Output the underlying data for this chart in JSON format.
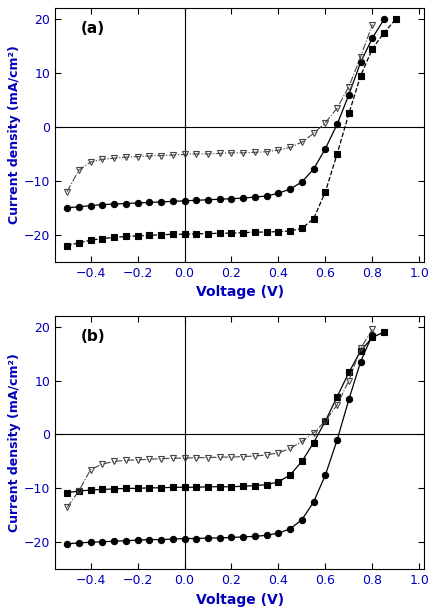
{
  "panel_a_label": "(a)",
  "panel_b_label": "(b)",
  "xlabel": "Voltage (V)",
  "ylabel": "Current density (mA/cm²)",
  "xlim": [
    -0.55,
    1.02
  ],
  "ylim": [
    -25,
    22
  ],
  "xticks": [
    -0.4,
    -0.2,
    0.0,
    0.2,
    0.4,
    0.6,
    0.8,
    1.0
  ],
  "yticks": [
    -20,
    -10,
    0,
    10,
    20
  ],
  "axis_label_color": "#0000bb",
  "background_color": "#ffffff",
  "panel_a": {
    "s1": {
      "marker": "s",
      "mfc": "black",
      "mec": "black",
      "ms": 4.5,
      "ls": "--",
      "lc": "black",
      "lw": 0.9,
      "x": [
        -0.5,
        -0.45,
        -0.4,
        -0.35,
        -0.3,
        -0.25,
        -0.2,
        -0.15,
        -0.1,
        -0.05,
        0.0,
        0.05,
        0.1,
        0.15,
        0.2,
        0.25,
        0.3,
        0.35,
        0.4,
        0.45,
        0.5,
        0.55,
        0.6,
        0.65,
        0.7,
        0.75,
        0.8,
        0.85,
        0.9
      ],
      "y": [
        -22.0,
        -21.5,
        -21.0,
        -20.7,
        -20.5,
        -20.3,
        -20.2,
        -20.1,
        -20.0,
        -19.9,
        -19.9,
        -19.8,
        -19.8,
        -19.7,
        -19.7,
        -19.6,
        -19.5,
        -19.5,
        -19.4,
        -19.3,
        -18.8,
        -17.0,
        -12.0,
        -5.0,
        2.5,
        9.5,
        14.5,
        17.5,
        20.0
      ]
    },
    "s2": {
      "marker": "o",
      "mfc": "black",
      "mec": "black",
      "ms": 4.5,
      "ls": "-",
      "lc": "black",
      "lw": 0.9,
      "x": [
        -0.5,
        -0.45,
        -0.4,
        -0.35,
        -0.3,
        -0.25,
        -0.2,
        -0.15,
        -0.1,
        -0.05,
        0.0,
        0.05,
        0.1,
        0.15,
        0.2,
        0.25,
        0.3,
        0.35,
        0.4,
        0.45,
        0.5,
        0.55,
        0.6,
        0.65,
        0.7,
        0.75,
        0.8,
        0.85
      ],
      "y": [
        -15.0,
        -14.8,
        -14.6,
        -14.4,
        -14.3,
        -14.2,
        -14.1,
        -14.0,
        -13.9,
        -13.8,
        -13.7,
        -13.6,
        -13.5,
        -13.4,
        -13.3,
        -13.2,
        -13.0,
        -12.8,
        -12.3,
        -11.5,
        -10.2,
        -7.8,
        -4.0,
        0.5,
        6.0,
        12.0,
        16.5,
        20.0
      ]
    },
    "s3": {
      "marker": "v",
      "mfc": "none",
      "mec": "#444444",
      "ms": 5.0,
      "ls": "-.",
      "lc": "#444444",
      "lw": 0.8,
      "x": [
        -0.5,
        -0.45,
        -0.4,
        -0.35,
        -0.3,
        -0.25,
        -0.2,
        -0.15,
        -0.1,
        -0.05,
        0.0,
        0.05,
        0.1,
        0.15,
        0.2,
        0.25,
        0.3,
        0.35,
        0.4,
        0.45,
        0.5,
        0.55,
        0.6,
        0.65,
        0.7,
        0.75,
        0.8
      ],
      "y": [
        -12.0,
        -8.0,
        -6.5,
        -6.0,
        -5.8,
        -5.6,
        -5.5,
        -5.4,
        -5.3,
        -5.2,
        -5.1,
        -5.0,
        -5.0,
        -4.9,
        -4.8,
        -4.8,
        -4.7,
        -4.6,
        -4.3,
        -3.8,
        -2.8,
        -1.2,
        0.8,
        3.5,
        7.5,
        13.0,
        19.0
      ]
    }
  },
  "panel_b": {
    "s1": {
      "marker": "s",
      "mfc": "black",
      "mec": "black",
      "ms": 4.5,
      "ls": "-",
      "lc": "black",
      "lw": 0.9,
      "x": [
        -0.5,
        -0.45,
        -0.4,
        -0.35,
        -0.3,
        -0.25,
        -0.2,
        -0.15,
        -0.1,
        -0.05,
        0.0,
        0.05,
        0.1,
        0.15,
        0.2,
        0.25,
        0.3,
        0.35,
        0.4,
        0.45,
        0.5,
        0.55,
        0.6,
        0.65,
        0.7,
        0.75,
        0.8,
        0.85
      ],
      "y": [
        -10.8,
        -10.5,
        -10.3,
        -10.2,
        -10.1,
        -10.0,
        -10.0,
        -9.9,
        -9.9,
        -9.8,
        -9.8,
        -9.8,
        -9.7,
        -9.7,
        -9.7,
        -9.6,
        -9.5,
        -9.3,
        -8.8,
        -7.5,
        -5.0,
        -1.5,
        2.5,
        7.0,
        11.5,
        15.5,
        18.0,
        19.0
      ]
    },
    "s2": {
      "marker": "o",
      "mfc": "black",
      "mec": "black",
      "ms": 4.5,
      "ls": "-",
      "lc": "black",
      "lw": 0.9,
      "x": [
        -0.5,
        -0.45,
        -0.4,
        -0.35,
        -0.3,
        -0.25,
        -0.2,
        -0.15,
        -0.1,
        -0.05,
        0.0,
        0.05,
        0.1,
        0.15,
        0.2,
        0.25,
        0.3,
        0.35,
        0.4,
        0.45,
        0.5,
        0.55,
        0.6,
        0.65,
        0.7,
        0.75,
        0.8
      ],
      "y": [
        -20.3,
        -20.1,
        -20.0,
        -19.9,
        -19.8,
        -19.7,
        -19.6,
        -19.5,
        -19.5,
        -19.4,
        -19.3,
        -19.3,
        -19.2,
        -19.2,
        -19.1,
        -19.0,
        -18.9,
        -18.7,
        -18.3,
        -17.5,
        -15.8,
        -12.5,
        -7.5,
        -1.0,
        6.5,
        13.5,
        18.5
      ]
    },
    "s3": {
      "marker": "v",
      "mfc": "none",
      "mec": "#444444",
      "ms": 5.0,
      "ls": "-.",
      "lc": "#444444",
      "lw": 0.8,
      "x": [
        -0.5,
        -0.45,
        -0.4,
        -0.35,
        -0.3,
        -0.25,
        -0.2,
        -0.15,
        -0.1,
        -0.05,
        0.0,
        0.05,
        0.1,
        0.15,
        0.2,
        0.25,
        0.3,
        0.35,
        0.4,
        0.45,
        0.5,
        0.55,
        0.6,
        0.65,
        0.7,
        0.75,
        0.8
      ],
      "y": [
        -13.5,
        -10.5,
        -6.5,
        -5.5,
        -5.0,
        -4.8,
        -4.7,
        -4.6,
        -4.5,
        -4.4,
        -4.4,
        -4.3,
        -4.3,
        -4.2,
        -4.2,
        -4.1,
        -4.0,
        -3.8,
        -3.4,
        -2.6,
        -1.3,
        0.3,
        2.5,
        5.5,
        10.0,
        16.0,
        19.5
      ]
    }
  }
}
